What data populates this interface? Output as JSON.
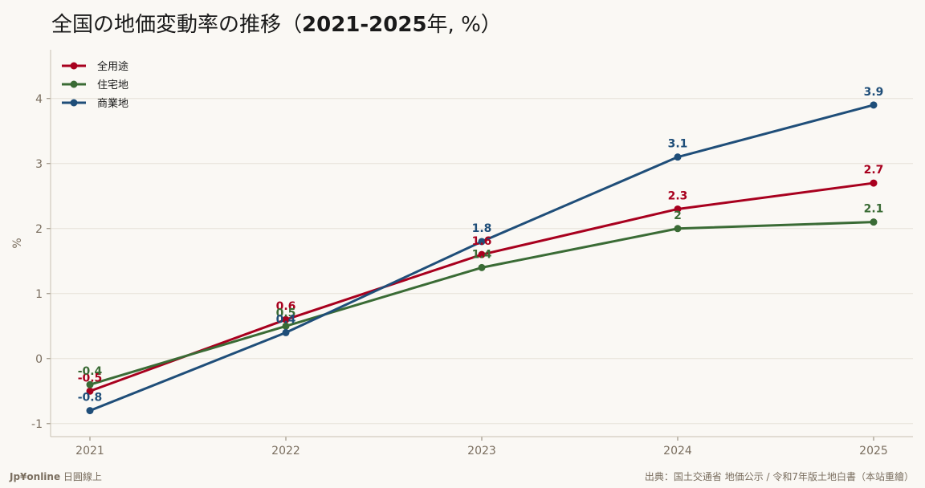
{
  "title": {
    "prefix": "全国の地価変動率の推移（",
    "bold": "2021-2025",
    "suffix": "年, %）"
  },
  "footer": {
    "brand": "Jp¥online",
    "brand_suffix": " 日圓線上",
    "source": "出典：国土交通省 地価公示 / 令和7年版土地白書（本站重繪）"
  },
  "chart_data": {
    "type": "line",
    "x": [
      "2021",
      "2022",
      "2023",
      "2024",
      "2025"
    ],
    "ylabel": "%",
    "ylim": [
      -1.2,
      4.75
    ],
    "yticks": [
      -1,
      0,
      1,
      2,
      3,
      4
    ],
    "grid": true,
    "legend_position": "top-left",
    "series": [
      {
        "name": "全用途",
        "color": "#a8001e",
        "values": [
          -0.5,
          0.6,
          1.6,
          2.3,
          2.7
        ],
        "labels": [
          "-0.5",
          "0.6",
          "1.6",
          "2.3",
          "2.7"
        ]
      },
      {
        "name": "住宅地",
        "color": "#3a6b35",
        "values": [
          -0.4,
          0.5,
          1.4,
          2.0,
          2.1
        ],
        "labels": [
          "-0.4",
          "0.5",
          "1.4",
          "2",
          "2.1"
        ]
      },
      {
        "name": "商業地",
        "color": "#1f4e79",
        "values": [
          -0.8,
          0.4,
          1.8,
          3.1,
          3.9
        ],
        "labels": [
          "-0.8",
          "0.4",
          "1.8",
          "3.1",
          "3.9"
        ]
      }
    ]
  }
}
